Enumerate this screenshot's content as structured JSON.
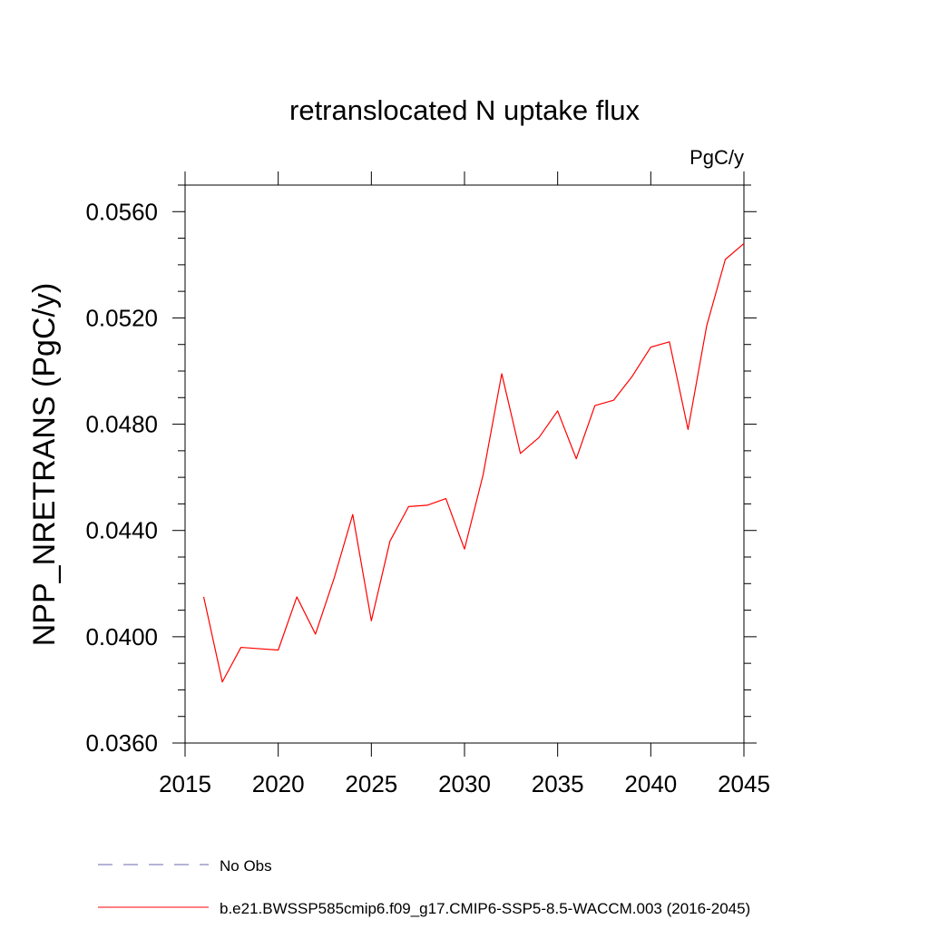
{
  "chart_data": {
    "type": "line",
    "title": "retranslocated N uptake flux",
    "units_label": "PgC/y",
    "xlabel": "",
    "ylabel": "NPP_NRETRANS  (PgC/y)",
    "xlim": [
      2015,
      2045
    ],
    "ylim": [
      0.036,
      0.057
    ],
    "xticks": [
      2015,
      2020,
      2025,
      2030,
      2035,
      2040,
      2045
    ],
    "xtick_labels": [
      "2015",
      "2020",
      "2025",
      "2030",
      "2035",
      "2040",
      "2045"
    ],
    "yticks": [
      0.036,
      0.04,
      0.044,
      0.048,
      0.052,
      0.056
    ],
    "ytick_labels": [
      "0.0360",
      "0.0400",
      "0.0440",
      "0.0480",
      "0.0520",
      "0.0560"
    ],
    "grid": false,
    "series": [
      {
        "name": "b.e21.BWSSP585cmip6.f09_g17.CMIP6-SSP5-8.5-WACCM.003 (2016-2045)",
        "color": "#ff0000",
        "dash": "solid",
        "x": [
          2016,
          2017,
          2018,
          2019,
          2020,
          2021,
          2022,
          2023,
          2024,
          2025,
          2026,
          2027,
          2028,
          2029,
          2030,
          2031,
          2032,
          2033,
          2034,
          2035,
          2036,
          2037,
          2038,
          2039,
          2040,
          2041,
          2042,
          2043,
          2044,
          2045
        ],
        "values": [
          0.0415,
          0.0383,
          0.0396,
          0.03955,
          0.0395,
          0.0415,
          0.0401,
          0.0422,
          0.0446,
          0.0406,
          0.0436,
          0.0449,
          0.04495,
          0.0452,
          0.0433,
          0.0461,
          0.0499,
          0.0469,
          0.0475,
          0.0485,
          0.0467,
          0.0487,
          0.0489,
          0.0498,
          0.0509,
          0.0511,
          0.0478,
          0.0517,
          0.0542,
          0.0548
        ]
      }
    ],
    "legend": [
      {
        "label": "No Obs",
        "color": "#6a6ab0",
        "dash": "dashed"
      },
      {
        "label": "b.e21.BWSSP585cmip6.f09_g17.CMIP6-SSP5-8.5-WACCM.003 (2016-2045)",
        "color": "#ff0000",
        "dash": "solid"
      }
    ]
  }
}
